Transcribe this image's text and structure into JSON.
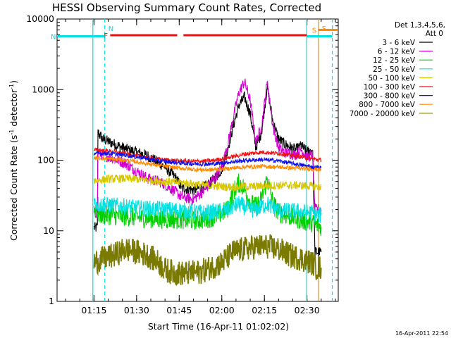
{
  "chart_data": {
    "type": "line",
    "title": "HESSI Observing Summary Count Rates, Corrected",
    "xlabel": "Start Time (16-Apr-11 01:02:02)",
    "ylabel_main": "Corrected Count Rate (s",
    "ylabel_sup1": "-1",
    "ylabel_mid": " detector",
    "ylabel_sup2": "-1",
    "ylabel_end": ")",
    "yscale": "log",
    "ylim": [
      1,
      10000
    ],
    "xlim_minutes": [
      62,
      161
    ],
    "x_ticks": [
      "01:15",
      "01:30",
      "01:45",
      "02:00",
      "02:15",
      "02:30"
    ],
    "y_ticks": [
      "1",
      "10",
      "100",
      "1000",
      "10000"
    ],
    "timestamp": "16-Apr-2011 22:54",
    "legend": {
      "header_line1": "Det 1,3,4,5,6,",
      "header_line2": "Att 0",
      "entries": [
        {
          "label": "3 - 6 keV",
          "color": "#000000"
        },
        {
          "label": "6 - 12 keV",
          "color": "#d000d0"
        },
        {
          "label": "12 - 25 keV",
          "color": "#00d000"
        },
        {
          "label": "25 - 50 keV",
          "color": "#00e0e0"
        },
        {
          "label": "50 - 100 keV",
          "color": "#d8c800"
        },
        {
          "label": "100 - 300 keV",
          "color": "#ee1111"
        },
        {
          "label": "300 - 800 keV",
          "color": "#1111ee"
        },
        {
          "label": "800 - 7000 keV",
          "color": "#ff8c00"
        },
        {
          "label": "7000 - 20000 keV",
          "color": "#7a7a00"
        }
      ]
    },
    "series": [
      {
        "name": "3 - 6 keV",
        "color": "#000000",
        "x": [
          75,
          75.8,
          76.2,
          76.4,
          78,
          82,
          86,
          90,
          94,
          98,
          100,
          104,
          106,
          110,
          114,
          116,
          118,
          120,
          122,
          124,
          126,
          128,
          130,
          132,
          134,
          136,
          138,
          140,
          142,
          146,
          148,
          150,
          152,
          152.8,
          153.2,
          155
        ],
        "y": [
          11,
          11,
          12,
          250,
          200,
          170,
          145,
          130,
          115,
          90,
          80,
          55,
          40,
          38,
          42,
          48,
          58,
          75,
          140,
          300,
          600,
          780,
          450,
          150,
          250,
          1100,
          350,
          200,
          170,
          140,
          160,
          130,
          140,
          5,
          5,
          5
        ]
      },
      {
        "name": "6 - 12 keV",
        "color": "#d000d0",
        "x": [
          75,
          75.8,
          76.2,
          76.4,
          78,
          82,
          86,
          90,
          94,
          98,
          100,
          104,
          106,
          110,
          114,
          116,
          118,
          120,
          122,
          124,
          126,
          128,
          130,
          132,
          134,
          136,
          138,
          140,
          142,
          146,
          148,
          150,
          152,
          152.8,
          153.2,
          155
        ],
        "y": [
          18,
          18,
          20,
          130,
          120,
          105,
          90,
          70,
          55,
          50,
          45,
          35,
          30,
          28,
          38,
          48,
          60,
          80,
          160,
          400,
          900,
          1300,
          700,
          180,
          300,
          1300,
          300,
          150,
          130,
          120,
          140,
          110,
          120,
          20,
          20,
          20
        ]
      },
      {
        "name": "12 - 25 keV",
        "color": "#00d000",
        "x": [
          75,
          75.8,
          76.2,
          76.4,
          80,
          86,
          90,
          94,
          100,
          106,
          110,
          114,
          118,
          122,
          124,
          126,
          128,
          130,
          132,
          134,
          136,
          138,
          140,
          144,
          148,
          152,
          153,
          155
        ],
        "y": [
          20,
          20,
          19,
          17,
          16.5,
          16,
          15.5,
          15,
          14.5,
          14.5,
          14,
          14.5,
          16,
          20,
          35,
          48,
          40,
          25,
          22,
          28,
          55,
          25,
          18,
          16,
          14,
          13,
          12,
          11.5
        ]
      },
      {
        "name": "25 - 50 keV",
        "color": "#00e0e0",
        "x": [
          75,
          75.8,
          76.2,
          76.4,
          80,
          86,
          90,
          94,
          100,
          106,
          110,
          114,
          118,
          122,
          124,
          126,
          128,
          130,
          132,
          134,
          136,
          138,
          140,
          144,
          148,
          152,
          153,
          155
        ],
        "y": [
          25,
          25,
          24,
          24,
          23,
          22,
          21,
          20.5,
          20,
          19.5,
          18.5,
          18,
          18.5,
          20,
          22,
          24,
          22,
          20,
          20,
          22,
          24,
          21,
          19.5,
          19,
          18.5,
          18,
          17,
          16.5
        ]
      },
      {
        "name": "50 - 100 keV",
        "color": "#d8c800",
        "x": [
          75,
          76.4,
          80,
          86,
          90,
          94,
          100,
          106,
          110,
          114,
          118,
          122,
          128,
          134,
          140,
          146,
          152,
          155
        ],
        "y": [
          52,
          52,
          54,
          55,
          54,
          52,
          50,
          48,
          46,
          44,
          43,
          42,
          42,
          43,
          44,
          44,
          43,
          42
        ]
      },
      {
        "name": "100 - 300 keV",
        "color": "#ee1111",
        "x": [
          75,
          80,
          86,
          92,
          98,
          104,
          110,
          116,
          122,
          128,
          134,
          140,
          146,
          152,
          155
        ],
        "y": [
          140,
          135,
          125,
          112,
          103,
          98,
          96,
          98,
          108,
          122,
          130,
          125,
          115,
          104,
          100
        ]
      },
      {
        "name": "300 - 800 keV",
        "color": "#1111ee",
        "x": [
          75,
          80,
          86,
          92,
          98,
          104,
          110,
          116,
          122,
          128,
          134,
          140,
          146,
          152,
          155
        ],
        "y": [
          125,
          125,
          118,
          108,
          98,
          92,
          89,
          88,
          93,
          99,
          102,
          98,
          88,
          80,
          78
        ]
      },
      {
        "name": "800 - 7000 keV",
        "color": "#ff8c00",
        "x": [
          75,
          80,
          86,
          92,
          98,
          104,
          110,
          116,
          122,
          128,
          134,
          140,
          146,
          152,
          155
        ],
        "y": [
          108,
          105,
          100,
          92,
          84,
          78,
          74,
          73,
          76,
          80,
          82,
          80,
          77,
          75,
          73
        ]
      },
      {
        "name": "7000 - 20000 keV",
        "color": "#7a7a00",
        "x": [
          75,
          78,
          82,
          86,
          90,
          94,
          98,
          100,
          104,
          108,
          112,
          116,
          120,
          124,
          128,
          132,
          136,
          140,
          144,
          148,
          152,
          153,
          155
        ],
        "y": [
          3.5,
          4.0,
          4.5,
          5.5,
          5.0,
          4.5,
          3.5,
          2.8,
          2.5,
          2.5,
          2.6,
          3.0,
          3.5,
          5.0,
          5.5,
          6.0,
          6.0,
          5.5,
          4.5,
          4.0,
          3.5,
          3.0,
          3.0
        ]
      }
    ],
    "spacecraft_flags": [
      {
        "label": "F",
        "color": "#ee1111",
        "x_start": 80.7,
        "x_end": 104.3,
        "y_level": 5900
      },
      {
        "label": "",
        "color": "#ee1111",
        "x_start": 106.5,
        "x_end": 149.9,
        "y_level": 5900
      },
      {
        "label": "N",
        "color": "#00e0e0",
        "x_start": 62,
        "x_end": 78.8,
        "y_level": 5700
      },
      {
        "label": "",
        "color": "#00e0e0",
        "x_start": 149.9,
        "x_end": 158.9,
        "y_level": 5700
      },
      {
        "label": "S",
        "color": "#ff8c00",
        "x_start": 154.0,
        "x_end": 161,
        "y_level": 7000
      }
    ],
    "vertical_lines": [
      {
        "x": 74.6,
        "color": "#00e0e0",
        "style": "solid",
        "label": ""
      },
      {
        "x": 78.8,
        "color": "#00e0e0",
        "style": "dashed",
        "label": "N"
      },
      {
        "x": 149.9,
        "color": "#00e0e0",
        "style": "solid",
        "label": ""
      },
      {
        "x": 154.0,
        "color": "#ff8c00",
        "style": "solid",
        "label": "S"
      },
      {
        "x": 158.9,
        "color": "#00e0e0",
        "style": "dashed",
        "label": ""
      }
    ]
  }
}
